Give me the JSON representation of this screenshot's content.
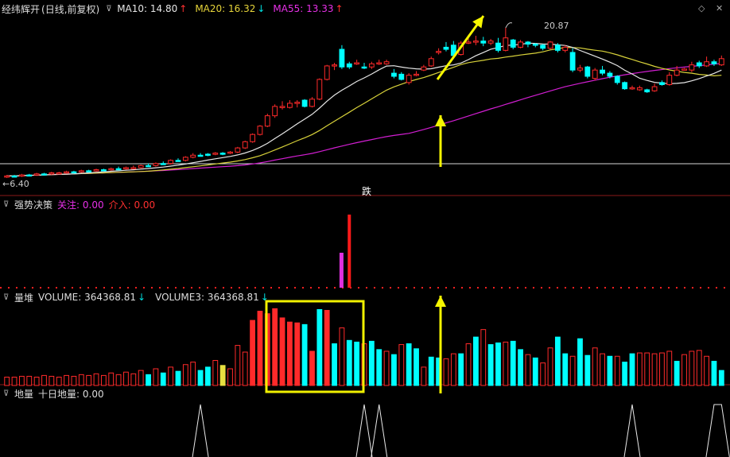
{
  "header": {
    "stock": "经纬辉开",
    "period": "(日线,前复权)",
    "ma10_label": "MA10: 14.80",
    "ma10_arrow": "↑",
    "ma20_label": "MA20: 16.32",
    "ma20_arrow": "↓",
    "ma55_label": "MA55: 13.33",
    "ma55_arrow": "↑"
  },
  "controls": {
    "settings_icon": "◇",
    "close_icon": "✕"
  },
  "main_panel": {
    "high_label": "20.87",
    "low_label": "6.40",
    "signal_label": "跌",
    "colors": {
      "up": "#ff2a2a",
      "down": "#00ffff",
      "ma10": "#e6e6e6",
      "ma20": "#d8d23a",
      "ma55": "#d21ed2"
    }
  },
  "panel_strong": {
    "title": "强势决策",
    "follow_label": "关注: 0.00",
    "entry_label": "介入: 0.00"
  },
  "panel_volume": {
    "title": "量堆",
    "vol_label": "VOLUME: 364368.81",
    "vol_arrow": "↓",
    "vol3_label": "VOLUME3: 364368.81",
    "vol3_arrow": "↓"
  },
  "panel_ground": {
    "title": "地量",
    "ten_day_label": "十日地量: 0.00"
  },
  "chart_data": {
    "type": "candlestick",
    "price_high": 20.87,
    "price_low": 6.4,
    "candles": [
      [
        6.5,
        6.6,
        6.7,
        6.4,
        0
      ],
      [
        6.6,
        6.6,
        6.7,
        6.5,
        1
      ],
      [
        6.6,
        6.7,
        6.8,
        6.5,
        0
      ],
      [
        6.7,
        6.7,
        6.8,
        6.6,
        1
      ],
      [
        6.7,
        6.8,
        6.9,
        6.6,
        0
      ],
      [
        6.8,
        6.8,
        6.9,
        6.7,
        1
      ],
      [
        6.8,
        6.9,
        7.0,
        6.7,
        0
      ],
      [
        6.9,
        6.9,
        7.0,
        6.8,
        0
      ],
      [
        6.9,
        7.0,
        7.1,
        6.8,
        0
      ],
      [
        7.0,
        7.0,
        7.1,
        6.9,
        1
      ],
      [
        7.0,
        7.1,
        7.2,
        6.9,
        0
      ],
      [
        7.1,
        7.1,
        7.2,
        7.0,
        1
      ],
      [
        7.1,
        7.2,
        7.3,
        7.0,
        0
      ],
      [
        7.2,
        7.2,
        7.3,
        7.1,
        1
      ],
      [
        7.2,
        7.3,
        7.4,
        7.1,
        0
      ],
      [
        7.3,
        7.3,
        7.5,
        7.2,
        1
      ],
      [
        7.3,
        7.4,
        7.5,
        7.2,
        0
      ],
      [
        7.4,
        7.4,
        7.6,
        7.3,
        0
      ],
      [
        7.4,
        7.6,
        7.7,
        7.3,
        0
      ],
      [
        7.6,
        7.6,
        7.8,
        7.5,
        1
      ],
      [
        7.6,
        7.8,
        7.9,
        7.5,
        0
      ],
      [
        7.8,
        7.8,
        8.0,
        7.7,
        1
      ],
      [
        7.8,
        8.1,
        8.2,
        7.7,
        0
      ],
      [
        8.1,
        8.1,
        8.3,
        8.0,
        1
      ],
      [
        8.1,
        8.4,
        8.5,
        8.0,
        0
      ],
      [
        8.4,
        8.6,
        8.8,
        8.3,
        0
      ],
      [
        8.6,
        8.6,
        8.8,
        8.5,
        1
      ],
      [
        8.6,
        8.7,
        8.8,
        8.5,
        1
      ],
      [
        8.7,
        8.8,
        8.9,
        8.6,
        0
      ],
      [
        8.8,
        8.8,
        8.9,
        8.6,
        1
      ],
      [
        8.8,
        8.9,
        9.0,
        8.7,
        0
      ],
      [
        8.9,
        9.3,
        9.4,
        8.8,
        0
      ],
      [
        9.3,
        9.9,
        10.0,
        9.2,
        0
      ],
      [
        9.9,
        10.6,
        10.7,
        9.8,
        0
      ],
      [
        10.6,
        11.4,
        11.5,
        10.5,
        0
      ],
      [
        11.4,
        12.4,
        12.6,
        11.3,
        0
      ],
      [
        12.4,
        13.3,
        13.5,
        12.2,
        0
      ],
      [
        13.3,
        13.2,
        13.8,
        13.0,
        0
      ],
      [
        13.2,
        13.6,
        13.9,
        13.1,
        0
      ],
      [
        13.6,
        13.7,
        13.9,
        13.2,
        0
      ],
      [
        13.9,
        13.3,
        14.0,
        13.2,
        1
      ],
      [
        13.3,
        14.0,
        14.2,
        13.2,
        0
      ],
      [
        14.0,
        15.9,
        16.0,
        13.9,
        0
      ],
      [
        15.9,
        17.2,
        17.3,
        15.8,
        0
      ],
      [
        17.2,
        17.3,
        17.5,
        16.8,
        0
      ],
      [
        18.8,
        17.1,
        19.2,
        16.9,
        1
      ],
      [
        17.1,
        17.4,
        17.6,
        16.9,
        1
      ],
      [
        17.4,
        17.5,
        17.8,
        17.3,
        0
      ],
      [
        17.1,
        17.1,
        17.5,
        16.9,
        1
      ],
      [
        17.1,
        17.4,
        17.6,
        16.9,
        0
      ],
      [
        17.5,
        17.4,
        17.8,
        17.3,
        0
      ],
      [
        17.4,
        17.6,
        17.8,
        17.3,
        0
      ],
      [
        16.5,
        16.2,
        16.9,
        16.0,
        1
      ],
      [
        16.4,
        15.9,
        16.6,
        15.8,
        1
      ],
      [
        15.6,
        16.3,
        16.5,
        15.4,
        0
      ],
      [
        16.3,
        16.4,
        16.7,
        16.2,
        0
      ],
      [
        16.8,
        17.1,
        17.3,
        16.7,
        0
      ],
      [
        17.2,
        17.9,
        18.1,
        17.1,
        0
      ],
      [
        18.5,
        18.6,
        18.9,
        18.3,
        0
      ],
      [
        19.0,
        18.8,
        19.5,
        18.6,
        1
      ],
      [
        19.2,
        18.2,
        19.6,
        18.0,
        1
      ],
      [
        18.3,
        19.4,
        19.6,
        18.2,
        0
      ],
      [
        19.4,
        19.5,
        20.2,
        19.3,
        0
      ],
      [
        19.5,
        19.6,
        20.1,
        19.2,
        0
      ],
      [
        19.6,
        19.4,
        20.0,
        19.1,
        1
      ],
      [
        19.4,
        19.6,
        19.8,
        19.2,
        0
      ],
      [
        19.4,
        18.7,
        19.9,
        18.5,
        1
      ],
      [
        18.7,
        19.9,
        20.87,
        18.6,
        0
      ],
      [
        19.7,
        19.0,
        19.8,
        18.8,
        1
      ],
      [
        19.0,
        19.5,
        19.7,
        18.9,
        0
      ],
      [
        19.5,
        19.3,
        19.6,
        19.0,
        1
      ],
      [
        19.3,
        19.2,
        19.4,
        19.0,
        1
      ],
      [
        19.2,
        18.9,
        19.3,
        18.7,
        1
      ],
      [
        18.9,
        19.5,
        19.6,
        18.8,
        0
      ],
      [
        19.2,
        18.7,
        19.4,
        18.5,
        1
      ],
      [
        18.7,
        19.0,
        19.2,
        18.5,
        0
      ],
      [
        18.5,
        16.8,
        18.9,
        16.6,
        1
      ],
      [
        16.8,
        17.0,
        17.3,
        16.6,
        0
      ],
      [
        17.1,
        16.2,
        17.2,
        16.0,
        1
      ],
      [
        16.0,
        16.8,
        17.0,
        15.8,
        0
      ],
      [
        16.8,
        16.5,
        17.2,
        16.3,
        1
      ],
      [
        16.5,
        16.2,
        16.7,
        16.0,
        1
      ],
      [
        16.2,
        15.6,
        16.3,
        15.4,
        1
      ],
      [
        15.6,
        15.0,
        15.7,
        14.9,
        1
      ],
      [
        15.0,
        15.1,
        15.3,
        14.9,
        0
      ],
      [
        15.1,
        14.9,
        15.3,
        14.8,
        0
      ],
      [
        14.9,
        14.7,
        15.0,
        14.6,
        1
      ],
      [
        14.8,
        15.2,
        15.5,
        14.7,
        0
      ],
      [
        15.6,
        15.4,
        15.8,
        15.3,
        1
      ],
      [
        15.4,
        16.3,
        16.6,
        15.3,
        0
      ],
      [
        16.3,
        16.8,
        17.2,
        16.2,
        0
      ],
      [
        16.9,
        16.9,
        17.0,
        16.8,
        0
      ],
      [
        16.8,
        17.3,
        17.6,
        16.6,
        0
      ],
      [
        17.5,
        17.2,
        17.7,
        17.0,
        1
      ],
      [
        17.2,
        17.6,
        18.1,
        17.1,
        0
      ],
      [
        17.6,
        17.4,
        17.8,
        17.2,
        1
      ],
      [
        17.3,
        17.9,
        18.2,
        17.2,
        0
      ]
    ],
    "volume": [
      [
        10,
        0
      ],
      [
        10,
        0
      ],
      [
        11,
        0
      ],
      [
        11,
        0
      ],
      [
        10,
        0
      ],
      [
        12,
        0
      ],
      [
        11,
        0
      ],
      [
        10,
        0
      ],
      [
        12,
        0
      ],
      [
        11,
        0
      ],
      [
        13,
        0
      ],
      [
        12,
        0
      ],
      [
        14,
        0
      ],
      [
        12,
        0
      ],
      [
        15,
        0
      ],
      [
        13,
        0
      ],
      [
        16,
        0
      ],
      [
        14,
        0
      ],
      [
        18,
        0
      ],
      [
        13,
        1
      ],
      [
        20,
        0
      ],
      [
        15,
        1
      ],
      [
        22,
        0
      ],
      [
        17,
        1
      ],
      [
        25,
        0
      ],
      [
        28,
        0
      ],
      [
        18,
        1
      ],
      [
        22,
        1
      ],
      [
        30,
        0
      ],
      [
        24,
        2
      ],
      [
        20,
        0
      ],
      [
        48,
        0
      ],
      [
        40,
        0
      ],
      [
        78,
        0
      ],
      [
        89,
        0
      ],
      [
        86,
        0
      ],
      [
        92,
        0
      ],
      [
        81,
        0
      ],
      [
        76,
        0
      ],
      [
        75,
        0
      ],
      [
        73,
        1
      ],
      [
        41,
        0
      ],
      [
        91,
        1
      ],
      [
        90,
        0
      ],
      [
        50,
        1
      ],
      [
        69,
        0
      ],
      [
        54,
        1
      ],
      [
        52,
        1
      ],
      [
        50,
        0
      ],
      [
        53,
        1
      ],
      [
        43,
        1
      ],
      [
        41,
        0
      ],
      [
        37,
        1
      ],
      [
        49,
        0
      ],
      [
        50,
        1
      ],
      [
        44,
        1
      ],
      [
        22,
        0
      ],
      [
        34,
        1
      ],
      [
        33,
        1
      ],
      [
        32,
        0
      ],
      [
        38,
        0
      ],
      [
        38,
        1
      ],
      [
        50,
        0
      ],
      [
        58,
        1
      ],
      [
        67,
        0
      ],
      [
        49,
        1
      ],
      [
        51,
        1
      ],
      [
        52,
        0
      ],
      [
        53,
        1
      ],
      [
        43,
        1
      ],
      [
        37,
        0
      ],
      [
        33,
        1
      ],
      [
        27,
        0
      ],
      [
        45,
        0
      ],
      [
        58,
        1
      ],
      [
        38,
        1
      ],
      [
        35,
        0
      ],
      [
        56,
        1
      ],
      [
        36,
        1
      ],
      [
        45,
        0
      ],
      [
        38,
        0
      ],
      [
        35,
        1
      ],
      [
        35,
        0
      ],
      [
        28,
        1
      ],
      [
        38,
        1
      ],
      [
        39,
        0
      ],
      [
        39,
        0
      ],
      [
        38,
        0
      ],
      [
        39,
        0
      ],
      [
        41,
        0
      ],
      [
        29,
        1
      ],
      [
        37,
        0
      ],
      [
        41,
        0
      ],
      [
        42,
        0
      ],
      [
        35,
        0
      ],
      [
        29,
        1
      ],
      [
        18,
        1
      ]
    ],
    "ground_peaks": [
      26,
      48,
      50,
      84,
      95,
      96
    ]
  }
}
